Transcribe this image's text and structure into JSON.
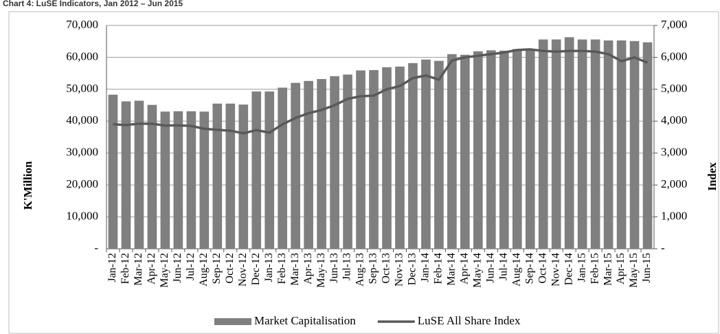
{
  "chart_data": {
    "type": "bar-line",
    "title": "Chart 4: LuSE Indicators, Jan 2012 – Jun 2015",
    "y_label": "K'Million",
    "y2_label": "Index",
    "categories": [
      "Jan-12",
      "Feb-12",
      "Mar-12",
      "Apr-12",
      "May-12",
      "Jun-12",
      "Jul-12",
      "Aug-12",
      "Sep-12",
      "Oct-12",
      "Nov-12",
      "Dec-12",
      "Jan-13",
      "Feb-13",
      "Mar-13",
      "Apr-13",
      "May-13",
      "Jun-13",
      "Jul-13",
      "Aug-13",
      "Sep-13",
      "Oct-13",
      "Nov-13",
      "Dec-13",
      "Jan-14",
      "Feb-14",
      "Mar-14",
      "Apr-14",
      "May-14",
      "Jun-14",
      "Jul-14",
      "Aug-14",
      "Sep-14",
      "Oct-14",
      "Nov-14",
      "Dec-14",
      "Jan-15",
      "Feb-15",
      "Mar-15",
      "Apr-15",
      "May-15",
      "Jun-15"
    ],
    "series": [
      {
        "name": "Market Capitalisation",
        "type": "bar",
        "color": "#7f7f7f",
        "values": [
          48300,
          46200,
          46400,
          45100,
          43000,
          43100,
          43100,
          43000,
          45500,
          45500,
          45200,
          49300,
          49300,
          50500,
          52000,
          52600,
          53200,
          54100,
          54600,
          55900,
          56000,
          56900,
          57100,
          58200,
          59300,
          58900,
          61000,
          60800,
          61900,
          62200,
          62100,
          62600,
          62500,
          65600,
          65600,
          66300,
          65600,
          65600,
          65300,
          65300,
          65100,
          64700
        ]
      },
      {
        "name": "LuSE All Share Index",
        "type": "line",
        "axis": "y2",
        "color": "#595959",
        "values": [
          3900,
          3880,
          3920,
          3920,
          3860,
          3870,
          3850,
          3760,
          3730,
          3700,
          3620,
          3720,
          3640,
          3900,
          4100,
          4250,
          4350,
          4500,
          4700,
          4780,
          4800,
          5000,
          5100,
          5350,
          5430,
          5300,
          5900,
          6000,
          6050,
          6100,
          6150,
          6230,
          6250,
          6200,
          6180,
          6200,
          6200,
          6180,
          6100,
          5880,
          6000,
          5830
        ]
      }
    ],
    "ylim": [
      0,
      70000
    ],
    "yticks": [
      {
        "value": 0,
        "label": "-"
      },
      {
        "value": 10000,
        "label": "10,000"
      },
      {
        "value": 20000,
        "label": "20,000"
      },
      {
        "value": 30000,
        "label": "30,000"
      },
      {
        "value": 40000,
        "label": "40,000"
      },
      {
        "value": 50000,
        "label": "50,000"
      },
      {
        "value": 60000,
        "label": "60,000"
      },
      {
        "value": 70000,
        "label": "70,000"
      }
    ],
    "y2lim": [
      0,
      7000
    ],
    "y2ticks": [
      {
        "value": 0,
        "label": "-"
      },
      {
        "value": 1000,
        "label": "1,000"
      },
      {
        "value": 2000,
        "label": "2,000"
      },
      {
        "value": 3000,
        "label": "3,000"
      },
      {
        "value": 4000,
        "label": "4,000"
      },
      {
        "value": 5000,
        "label": "5,000"
      },
      {
        "value": 6000,
        "label": "6,000"
      },
      {
        "value": 7000,
        "label": "7,000"
      }
    ],
    "grid": true,
    "legend": "bottom"
  }
}
